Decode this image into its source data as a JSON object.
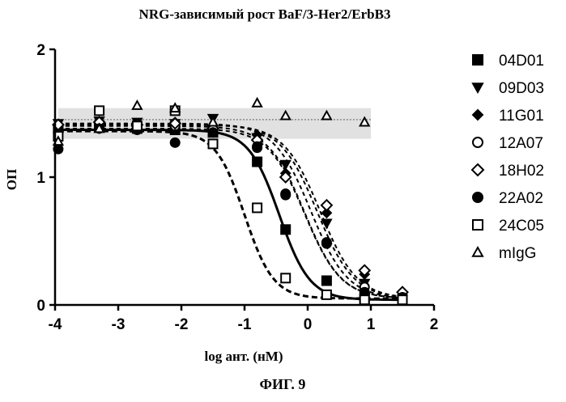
{
  "chart_data": {
    "type": "scatter",
    "title": "NRG-зависимый рост BaF/3-Her2/ErbB3",
    "xlabel": "log ант. (нМ)",
    "ylabel": "ОП",
    "caption": "ФИГ. 9",
    "xlim": [
      -4,
      2
    ],
    "ylim": [
      0,
      2
    ],
    "xticks": [
      -4,
      -3,
      -2,
      -1,
      0,
      1,
      2
    ],
    "yticks": [
      0,
      1,
      2
    ],
    "legend_position": "right",
    "grid": false,
    "series": [
      {
        "name": "04D01",
        "marker": "square-filled",
        "line": "solid",
        "ic50": -0.45,
        "top": 1.37,
        "bottom": 0.04,
        "hill": 1.8,
        "x": [
          -3.95,
          -3.3,
          -2.7,
          -2.1,
          -1.5,
          -0.8,
          -0.35,
          0.3,
          0.9,
          1.5
        ],
        "y": [
          1.38,
          1.4,
          1.38,
          1.37,
          1.35,
          1.12,
          0.59,
          0.19,
          0.05,
          0.04
        ]
      },
      {
        "name": "09D03",
        "marker": "triangle-down-filled",
        "line": "dash",
        "ic50": 0.05,
        "top": 1.42,
        "bottom": 0.05,
        "hill": 1.5,
        "x": [
          -3.95,
          -3.3,
          -2.7,
          -2.1,
          -1.5,
          -0.8,
          -0.35,
          0.3,
          0.9,
          1.5
        ],
        "y": [
          1.42,
          1.44,
          1.43,
          1.42,
          1.46,
          1.31,
          1.1,
          0.64,
          0.17,
          0.07
        ]
      },
      {
        "name": "11G01",
        "marker": "diamond-filled",
        "line": "dash",
        "ic50": 0.15,
        "top": 1.41,
        "bottom": 0.05,
        "hill": 1.5,
        "x": [
          -3.95,
          -3.3,
          -2.7,
          -2.1,
          -1.5,
          -0.8,
          -0.35,
          0.3,
          0.9,
          1.5
        ],
        "y": [
          1.41,
          1.42,
          1.4,
          1.43,
          1.4,
          1.33,
          1.03,
          0.72,
          0.24,
          0.08
        ]
      },
      {
        "name": "12A07",
        "marker": "circle-open",
        "line": "dash",
        "ic50": -0.05,
        "top": 1.4,
        "bottom": 0.05,
        "hill": 1.5,
        "x": [
          -3.95,
          -3.3,
          -2.7,
          -2.1,
          -1.5,
          -0.8,
          -0.35,
          0.3,
          0.9,
          1.5
        ],
        "y": [
          1.4,
          1.41,
          1.42,
          1.4,
          1.36,
          1.23,
          0.87,
          0.49,
          0.14,
          0.06
        ]
      },
      {
        "name": "18H02",
        "marker": "diamond-open",
        "line": "dash",
        "ic50": 0.2,
        "top": 1.41,
        "bottom": 0.05,
        "hill": 1.5,
        "x": [
          -3.95,
          -3.3,
          -2.7,
          -2.1,
          -1.5,
          -0.8,
          -0.35,
          0.3,
          0.9,
          1.5
        ],
        "y": [
          1.41,
          1.43,
          1.41,
          1.42,
          1.38,
          1.29,
          1.0,
          0.78,
          0.27,
          0.1
        ]
      },
      {
        "name": "22A02",
        "marker": "circle-filled",
        "line": "dash",
        "ic50": -0.05,
        "top": 1.38,
        "bottom": 0.05,
        "hill": 1.5,
        "x": [
          -3.95,
          -3.3,
          -2.7,
          -2.1,
          -1.5,
          -0.8,
          -0.35,
          0.3,
          0.9,
          1.5
        ],
        "y": [
          1.22,
          1.38,
          1.37,
          1.27,
          1.35,
          1.24,
          0.86,
          0.48,
          0.1,
          0.06
        ]
      },
      {
        "name": "24C05",
        "marker": "square-open",
        "line": "dash",
        "ic50": -1.0,
        "top": 1.36,
        "bottom": 0.05,
        "hill": 1.9,
        "x": [
          -3.95,
          -3.3,
          -2.7,
          -2.1,
          -1.5,
          -0.8,
          -0.35,
          0.3,
          0.9,
          1.5
        ],
        "y": [
          1.32,
          1.52,
          1.4,
          1.52,
          1.26,
          0.76,
          0.21,
          0.08,
          0.04,
          0.04
        ]
      },
      {
        "name": "mIgG",
        "marker": "triangle-up-open",
        "line": "none",
        "top": 1.45,
        "x": [
          -3.95,
          -3.3,
          -2.7,
          -2.1,
          -1.5,
          -0.8,
          -0.35,
          0.3,
          0.9
        ],
        "y": [
          1.28,
          1.38,
          1.56,
          1.54,
          1.43,
          1.58,
          1.48,
          1.48,
          1.43
        ]
      }
    ]
  }
}
